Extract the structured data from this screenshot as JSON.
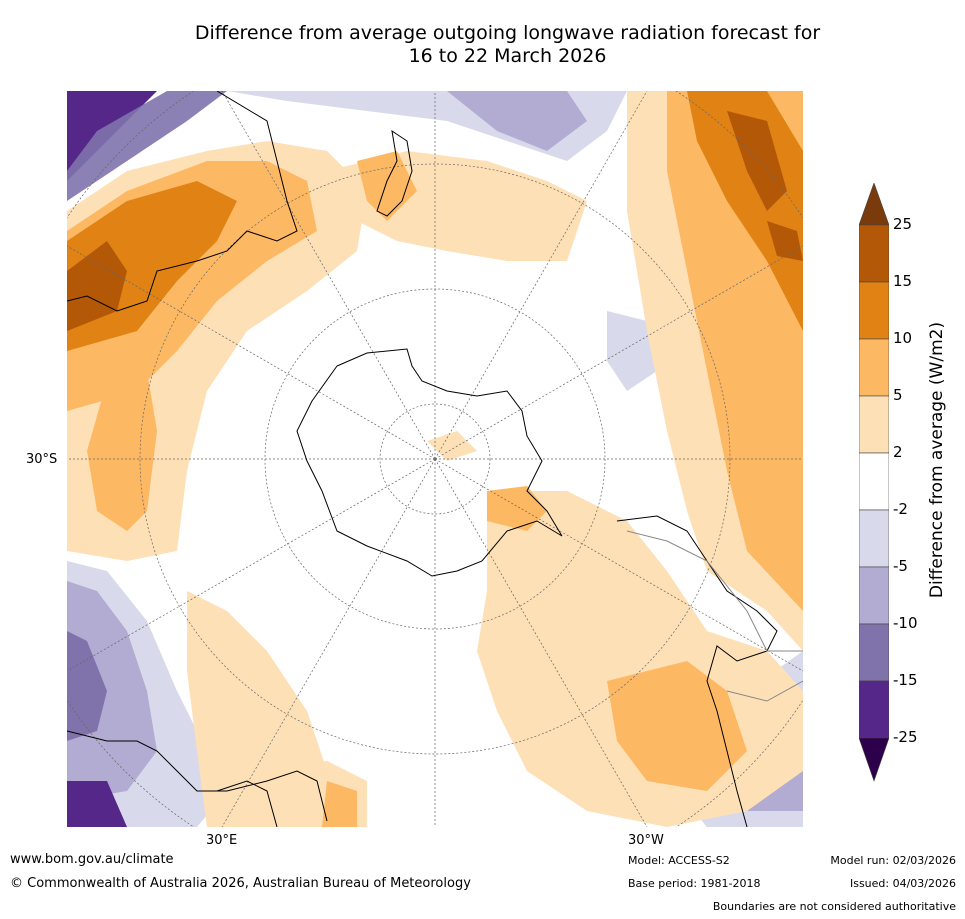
{
  "title": {
    "line1": "Difference from average outgoing longwave radiation forecast for",
    "line2": "16 to 22 March 2026"
  },
  "map": {
    "projection": "south-polar-stereographic",
    "labels": {
      "lat_30s": "30°S",
      "lon_30e": "30°E",
      "lon_30w": "30°W"
    }
  },
  "colorbar": {
    "title": "Difference from average (W/m2)",
    "ticks": [
      "25",
      "15",
      "10",
      "5",
      "2",
      "-2",
      "-5",
      "-10",
      "-15",
      "-25"
    ],
    "colors": {
      "above_25": "#7a3b0c",
      "15_25": "#b35806",
      "10_15": "#e08214",
      "5_10": "#fdb863",
      "2_5": "#fee0b6",
      "m2_2": "#ffffff",
      "m5_m2": "#d8daeb",
      "m10_m5": "#b2abd2",
      "m15_m10": "#8073ac",
      "m25_m15": "#542788",
      "below_m25": "#2d004b"
    }
  },
  "footer": {
    "website": "www.bom.gov.au/climate",
    "copyright": "© Commonwealth of Australia 2026, Australian Bureau of Meteorology",
    "model": "Model: ACCESS-S2",
    "base_period": "Base period: 1981-2018",
    "model_run": "Model run: 02/03/2026",
    "issued": "Issued: 04/03/2026",
    "disclaimer": "Boundaries are not considered authoritative"
  }
}
